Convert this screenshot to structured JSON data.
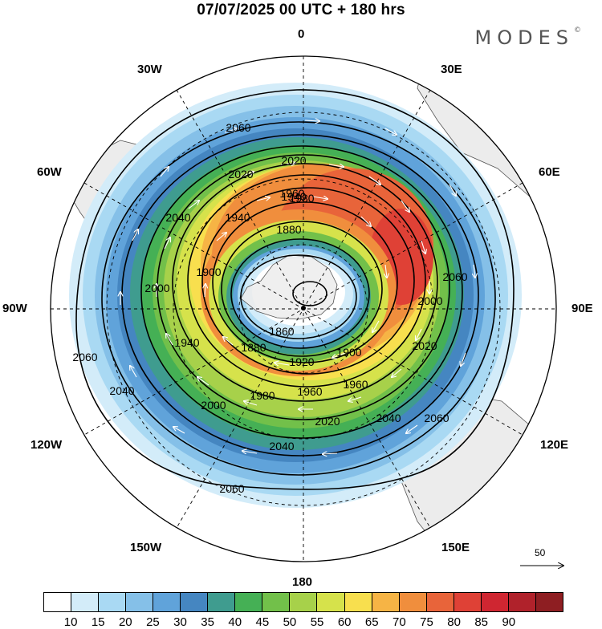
{
  "header": {
    "title": "07/07/2025  00 UTC  + 180 hrs",
    "logo": "MODES"
  },
  "map": {
    "projection": "south polar stereographic",
    "longitude_labels": {
      "top": "0",
      "top_left": "30W",
      "top_right": "30E",
      "upper_left": "60W",
      "upper_right": "60E",
      "left": "90W",
      "right": "90E",
      "lower_left": "120W",
      "lower_right": "120E",
      "bottom_left": "150W",
      "bottom_right": "150E",
      "bottom": "180"
    },
    "contour_labels": [
      "2060",
      "2060",
      "2060",
      "2060",
      "2060",
      "2040",
      "2040",
      "2040",
      "2040",
      "2020",
      "2020",
      "2020",
      "2020",
      "2000",
      "2000",
      "2000",
      "1980",
      "1980",
      "1960",
      "1960",
      "1960",
      "1940",
      "1940",
      "1940",
      "1920",
      "1900",
      "1900",
      "1880",
      "1880",
      "1860"
    ],
    "reference_vector": "50"
  },
  "colorbar": {
    "colors": [
      "#ffffff",
      "#d3ecf9",
      "#a9d9f3",
      "#85c0e8",
      "#60a3da",
      "#4586c1",
      "#3f9c8f",
      "#45b055",
      "#72c04a",
      "#a7d14a",
      "#d6e24b",
      "#f8df4e",
      "#f6b445",
      "#f08e3d",
      "#e8643a",
      "#df4136",
      "#cf2631",
      "#b0222b",
      "#8e1e22"
    ],
    "labels": [
      "10",
      "15",
      "20",
      "25",
      "30",
      "35",
      "40",
      "45",
      "50",
      "55",
      "60",
      "65",
      "70",
      "75",
      "80",
      "85",
      "90"
    ]
  }
}
